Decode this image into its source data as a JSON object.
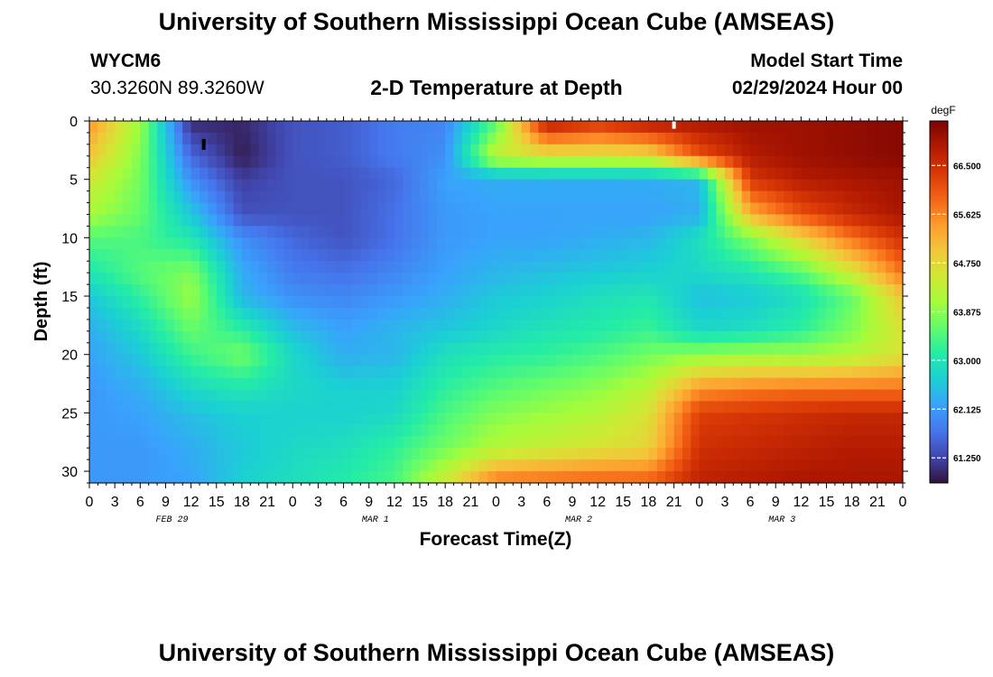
{
  "header": {
    "title": "University of Southern Mississippi Ocean Cube (AMSEAS)",
    "station_id": "WYCM6",
    "coordinates": "30.3260N  89.3260W",
    "product": "2-D Temperature at Depth",
    "model_start_label": "Model Start Time",
    "model_start_time": "02/29/2024 Hour 00"
  },
  "footer": {
    "title": "University of Southern Mississippi Ocean Cube (AMSEAS)"
  },
  "chart_data": {
    "type": "heatmap",
    "title": "2-D Temperature at Depth",
    "xlabel": "Forecast Time(Z)",
    "ylabel": "Depth (ft)",
    "x_unit": "hours from 02/29/2024 00Z",
    "x_ticks": [
      "0",
      "3",
      "6",
      "9",
      "12",
      "15",
      "18",
      "21",
      "0",
      "3",
      "6",
      "9",
      "12",
      "15",
      "18",
      "21",
      "0",
      "3",
      "6",
      "9",
      "12",
      "15",
      "18",
      "21",
      "0",
      "3",
      "6",
      "9",
      "12",
      "15",
      "18",
      "21",
      "0"
    ],
    "day_labels": [
      "FEB 29",
      "MAR 1",
      "MAR 2",
      "MAR 3"
    ],
    "y_ticks": [
      "0",
      "5",
      "10",
      "15",
      "20",
      "25",
      "30"
    ],
    "y_range": [
      0,
      31
    ],
    "y_inverted": true,
    "colorbar": {
      "unit": "degF",
      "min": 60.8,
      "max": 67.3,
      "ticks": [
        "66.500",
        "65.625",
        "64.750",
        "63.875",
        "63.000",
        "62.125",
        "61.250"
      ],
      "tick_values": [
        66.5,
        65.625,
        64.75,
        63.875,
        63.0,
        62.125,
        61.25
      ]
    },
    "depths_ft": [
      0,
      3,
      5,
      8,
      10,
      13,
      15,
      18,
      20,
      23,
      25,
      28,
      31
    ],
    "times_h": [
      0,
      6,
      12,
      18,
      24,
      30,
      36,
      42,
      48,
      54,
      60,
      66,
      72,
      78,
      84,
      90,
      96
    ],
    "temperatures_degF": [
      [
        65.5,
        64.0,
        61.0,
        61.0,
        61.4,
        61.5,
        61.8,
        61.9,
        63.5,
        66.9,
        66.5,
        66.9,
        66.9,
        67.0,
        67.0,
        67.1,
        67.2
      ],
      [
        65.0,
        63.8,
        61.6,
        60.9,
        61.4,
        61.5,
        61.8,
        62.0,
        64.4,
        64.6,
        64.6,
        64.7,
        66.1,
        66.8,
        67.0,
        67.1,
        67.2
      ],
      [
        64.5,
        63.7,
        62.0,
        61.2,
        61.4,
        61.4,
        61.6,
        62.2,
        62.3,
        62.3,
        62.3,
        62.3,
        62.4,
        66.4,
        66.8,
        66.9,
        67.0
      ],
      [
        64.1,
        63.6,
        62.6,
        61.4,
        61.4,
        61.4,
        61.7,
        62.1,
        62.2,
        62.2,
        62.2,
        62.2,
        62.3,
        65.2,
        66.1,
        66.6,
        66.9
      ],
      [
        63.5,
        63.4,
        63.0,
        62.0,
        61.6,
        61.4,
        61.7,
        62.1,
        62.2,
        62.2,
        62.3,
        62.4,
        62.9,
        63.8,
        64.8,
        65.8,
        66.5
      ],
      [
        63.0,
        63.5,
        63.8,
        62.3,
        61.8,
        61.7,
        61.9,
        62.2,
        62.4,
        62.5,
        62.6,
        62.7,
        62.8,
        63.0,
        63.5,
        64.5,
        65.8
      ],
      [
        62.6,
        63.2,
        64.0,
        62.4,
        62.0,
        61.9,
        62.1,
        62.3,
        62.6,
        62.7,
        62.9,
        63.0,
        62.5,
        62.6,
        62.9,
        63.6,
        65.0
      ],
      [
        62.3,
        62.8,
        63.6,
        63.2,
        62.5,
        62.2,
        62.4,
        62.6,
        62.8,
        63.0,
        63.1,
        63.3,
        62.8,
        62.9,
        63.2,
        63.8,
        64.6
      ],
      [
        62.2,
        62.6,
        63.3,
        63.7,
        62.8,
        62.3,
        62.4,
        62.9,
        63.1,
        63.2,
        63.4,
        63.7,
        63.9,
        64.0,
        64.0,
        64.2,
        64.6
      ],
      [
        62.1,
        62.3,
        62.8,
        63.0,
        62.8,
        62.7,
        62.7,
        63.2,
        63.5,
        63.7,
        63.9,
        64.3,
        65.5,
        65.7,
        65.8,
        65.8,
        65.8
      ],
      [
        62.1,
        62.2,
        62.5,
        62.7,
        62.7,
        62.7,
        62.8,
        63.4,
        63.8,
        64.0,
        64.2,
        64.6,
        66.3,
        66.4,
        66.5,
        66.6,
        66.6
      ],
      [
        62.1,
        62.1,
        62.3,
        62.6,
        62.8,
        62.9,
        63.2,
        63.7,
        64.2,
        64.4,
        64.6,
        64.8,
        66.5,
        66.6,
        66.7,
        66.8,
        66.8
      ],
      [
        62.1,
        62.1,
        62.2,
        62.7,
        62.9,
        63.1,
        63.4,
        64.5,
        65.8,
        65.9,
        66.0,
        66.0,
        66.7,
        66.8,
        66.9,
        66.9,
        66.9
      ]
    ],
    "markers": [
      {
        "time_h": 13.5,
        "depth_ft": 2.0,
        "color": "#000000"
      },
      {
        "time_h": 69,
        "depth_ft": 0.2,
        "color": "#ffffff"
      }
    ],
    "colormap": [
      "#30123b",
      "#4145ab",
      "#4675ed",
      "#39a2fc",
      "#1bcfd4",
      "#24eca6",
      "#61fc6c",
      "#a4fc3b",
      "#d1e834",
      "#f3c63a",
      "#fe9b2d",
      "#f36315",
      "#d93806",
      "#b11901",
      "#7a0402"
    ]
  }
}
